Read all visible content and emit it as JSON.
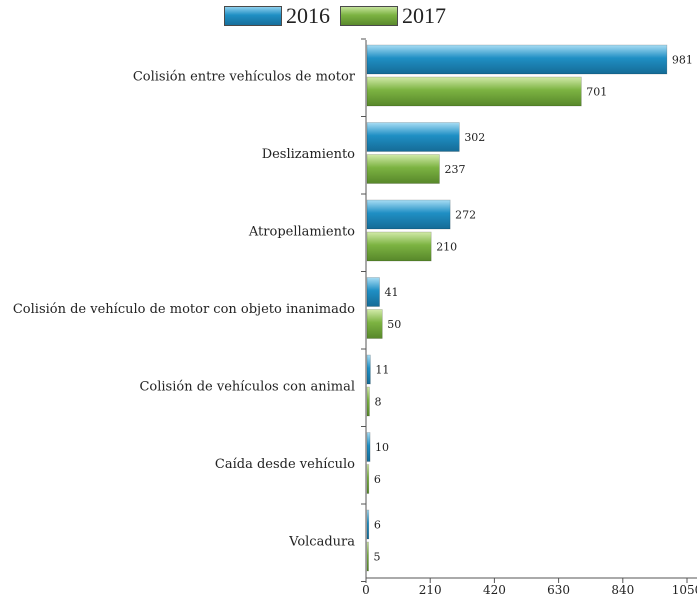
{
  "chart_data": {
    "type": "bar",
    "orientation": "horizontal",
    "categories": [
      "Colisión entre vehículos de motor",
      "Deslizamiento",
      "Atropellamiento",
      "Colisión de vehículo de motor con objeto inanimado",
      "Colisión de vehículos con animal",
      "Caída desde vehículo",
      "Volcadura"
    ],
    "series": [
      {
        "name": "2016",
        "values": [
          981,
          302,
          272,
          41,
          11,
          10,
          6
        ],
        "color": "#1f8fc4"
      },
      {
        "name": "2017",
        "values": [
          701,
          237,
          210,
          50,
          8,
          6,
          5
        ],
        "color": "#7cb342"
      }
    ],
    "xlim": [
      0,
      1050
    ],
    "xticks": [
      "0",
      "210",
      "420",
      "630",
      "840",
      "1050"
    ],
    "legend_position": "top-center",
    "grid": false,
    "title": "",
    "xlabel": "",
    "ylabel": ""
  }
}
